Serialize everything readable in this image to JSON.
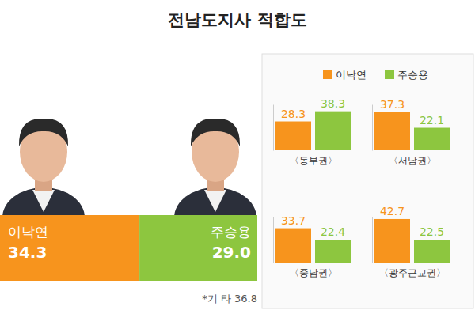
{
  "chart_data": [
    {
      "type": "bar",
      "title": "전남도지사 적합도",
      "orientation": "horizontal",
      "stacked": true,
      "data_labels": true,
      "tick_labels": false,
      "xlim": [
        0,
        63.3
      ],
      "series": [
        {
          "name": "이낙연",
          "color": "#f7941d",
          "values": [
            34.3
          ],
          "value_labels": [
            "34.3"
          ]
        },
        {
          "name": "주승용",
          "color": "#8dc63f",
          "values": [
            29.0
          ],
          "value_labels": [
            "29.0"
          ]
        }
      ],
      "annotations": [
        {
          "text": "*기 타",
          "value": 36.8
        }
      ]
    },
    {
      "type": "bar",
      "categories": [
        "〈동부권〉",
        "〈서남권〉",
        "〈중남권〉",
        "〈광주근교권〉"
      ],
      "series": [
        {
          "name": "이낙연",
          "color": "#f7941d",
          "values": [
            28.3,
            37.3,
            33.7,
            42.7
          ]
        },
        {
          "name": "주승용",
          "color": "#8dc63f",
          "values": [
            38.3,
            22.1,
            22.4,
            22.5
          ]
        }
      ],
      "ylim": [
        0,
        45
      ],
      "data_labels": true,
      "legend": "top",
      "tick_labels": "x"
    }
  ]
}
